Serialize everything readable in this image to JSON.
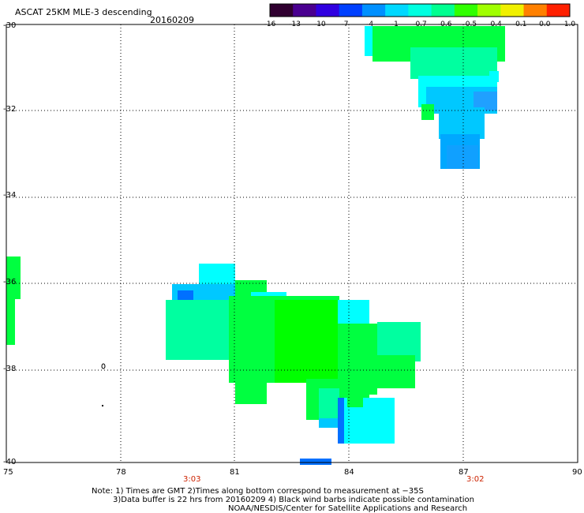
{
  "header": {
    "title": "ASCAT 25KM MLE-3 descending",
    "date": "20160209"
  },
  "colorbar": {
    "labels": [
      "-16",
      "-13",
      "-10",
      "-7",
      "-4",
      "-1",
      "-0.7",
      "-0.6",
      "-0.5",
      "-0.4",
      "-0.1",
      "0.0",
      "1.0"
    ],
    "colors": [
      "#300030",
      "#4a0090",
      "#3000e0",
      "#0040ff",
      "#0090ff",
      "#00d8ff",
      "#00ffe0",
      "#00ff90",
      "#30ff00",
      "#a0ff00",
      "#f0f000",
      "#ff8000",
      "#ff2000"
    ]
  },
  "axes": {
    "lon_ticks": [
      "75",
      "78",
      "81",
      "84",
      "87",
      "90"
    ],
    "lat_ticks": [
      "-30",
      "-32",
      "-34",
      "-36",
      "-38",
      "-40"
    ],
    "lon_range": [
      75,
      90
    ],
    "lat_range": [
      -30,
      -40
    ]
  },
  "times": {
    "time_a": "3:03",
    "time_b": "3:02"
  },
  "notes": {
    "line1": "Note: 1) Times are GMT 2)Times along bottom correspond to measurement at −35S",
    "line2": "3)Data buffer is 22 hrs from 20160209 4) Black wind barbs indicate possible contamination",
    "line3": "NOAA/NESDIS/Center for Satellite Applications and Research"
  },
  "legend_colors": {
    "cyan": "#00ffff",
    "aqua_green": "#00ffa0",
    "green": "#00ff40",
    "bright_green": "#00ff00",
    "light_blue": "#00c8ff",
    "blue": "#0070ff"
  }
}
